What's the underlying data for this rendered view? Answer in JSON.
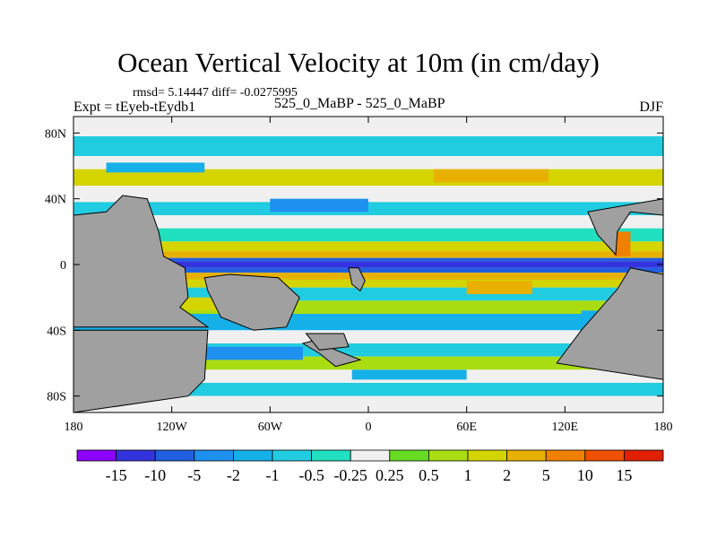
{
  "chart_data": {
    "type": "heatmap",
    "title": "Ocean Vertical Velocity at 10m (in cm/day)",
    "subtitle": "rmsd= 5.14447  diff= -0.0275995",
    "left_label": "Expt = tEyeb-tEydb1",
    "center_label": "525_0_MaBP - 525_0_MaBP",
    "right_label": "DJF",
    "x_range": [
      -180,
      180
    ],
    "y_range": [
      -90,
      90
    ],
    "x_ticks": [
      {
        "value": -180,
        "label": "180"
      },
      {
        "value": -120,
        "label": "120W"
      },
      {
        "value": -60,
        "label": "60W"
      },
      {
        "value": 0,
        "label": "0"
      },
      {
        "value": 60,
        "label": "60E"
      },
      {
        "value": 120,
        "label": "120E"
      },
      {
        "value": 180,
        "label": "180"
      }
    ],
    "y_ticks": [
      {
        "value": 80,
        "label": "80N"
      },
      {
        "value": 40,
        "label": "40N"
      },
      {
        "value": 0,
        "label": "0"
      },
      {
        "value": -40,
        "label": "40S"
      },
      {
        "value": -80,
        "label": "80S"
      }
    ],
    "colorbar": {
      "levels": [
        "-15",
        "-10",
        "-5",
        "-2",
        "-1",
        "-0.5",
        "-0.25",
        "0.25",
        "0.5",
        "1",
        "2",
        "5",
        "10",
        "15"
      ],
      "colors": [
        "#8b00ff",
        "#3333dd",
        "#2060e0",
        "#1e90f0",
        "#16b0e8",
        "#22cce0",
        "#20e0c0",
        "#f0f0f0",
        "#66dd22",
        "#aadd11",
        "#d4d400",
        "#e8b000",
        "#f08000",
        "#ee5000",
        "#e02000"
      ]
    },
    "land_color": "#a0a0a0",
    "bands": [
      {
        "lat_from": 90,
        "lat_to": 78,
        "value": 0.1
      },
      {
        "lat_from": 78,
        "lat_to": 66,
        "value": -0.7
      },
      {
        "lat_from": 66,
        "lat_to": 58,
        "value": 0.1
      },
      {
        "lat_from": 58,
        "lat_to": 48,
        "value": 1.2
      },
      {
        "lat_from": 48,
        "lat_to": 38,
        "value": 0.1
      },
      {
        "lat_from": 38,
        "lat_to": 30,
        "value": -0.6
      },
      {
        "lat_from": 30,
        "lat_to": 22,
        "value": 0.1
      },
      {
        "lat_from": 22,
        "lat_to": 14,
        "value": -0.4
      },
      {
        "lat_from": 14,
        "lat_to": 8,
        "value": 1.5
      },
      {
        "lat_from": 8,
        "lat_to": 4,
        "value": 3
      },
      {
        "lat_from": 4,
        "lat_to": 2,
        "value": -6
      },
      {
        "lat_from": 2,
        "lat_to": -2,
        "value": -12
      },
      {
        "lat_from": -2,
        "lat_to": -5,
        "value": -6
      },
      {
        "lat_from": -5,
        "lat_to": -9,
        "value": 3
      },
      {
        "lat_from": -9,
        "lat_to": -14,
        "value": 1.5
      },
      {
        "lat_from": -14,
        "lat_to": -22,
        "value": -0.7
      },
      {
        "lat_from": -22,
        "lat_to": -30,
        "value": 0.6
      },
      {
        "lat_from": -30,
        "lat_to": -40,
        "value": -1.2
      },
      {
        "lat_from": -40,
        "lat_to": -48,
        "value": 0.1
      },
      {
        "lat_from": -48,
        "lat_to": -56,
        "value": -0.7
      },
      {
        "lat_from": -56,
        "lat_to": -64,
        "value": 0.8
      },
      {
        "lat_from": -64,
        "lat_to": -72,
        "value": 0.1
      },
      {
        "lat_from": -72,
        "lat_to": -80,
        "value": -0.8
      },
      {
        "lat_from": -80,
        "lat_to": -90,
        "value": 0.1
      }
    ],
    "patches": [
      {
        "lon_from": -160,
        "lon_to": -100,
        "lat_from": 56,
        "lat_to": 62,
        "value": -1.5
      },
      {
        "lon_from": 40,
        "lon_to": 110,
        "lat_from": 50,
        "lat_to": 58,
        "value": 2.5
      },
      {
        "lon_from": -60,
        "lon_to": 0,
        "lat_from": 32,
        "lat_to": 40,
        "value": -2.5
      },
      {
        "lon_from": 60,
        "lon_to": 100,
        "lat_from": -18,
        "lat_to": -10,
        "value": 3
      },
      {
        "lon_from": -120,
        "lon_to": -90,
        "lat_from": -28,
        "lat_to": -20,
        "value": 1.5
      },
      {
        "lon_from": -100,
        "lon_to": -40,
        "lat_from": -58,
        "lat_to": -50,
        "value": -3
      },
      {
        "lon_from": 130,
        "lon_to": 170,
        "lat_from": -36,
        "lat_to": -28,
        "value": -2
      },
      {
        "lon_from": -10,
        "lon_to": 60,
        "lat_from": -70,
        "lat_to": -64,
        "value": -1.5
      },
      {
        "lon_from": 150,
        "lon_to": 160,
        "lat_from": 5,
        "lat_to": 20,
        "value": 6
      }
    ],
    "land": [
      {
        "name": "north-america",
        "points": [
          [
            -180,
            30
          ],
          [
            -160,
            32
          ],
          [
            -150,
            42
          ],
          [
            -135,
            40
          ],
          [
            -128,
            20
          ],
          [
            -125,
            5
          ],
          [
            -112,
            -2
          ],
          [
            -110,
            -20
          ],
          [
            -115,
            -26
          ],
          [
            -98,
            -38
          ],
          [
            -180,
            -38
          ]
        ]
      },
      {
        "name": "south-pacific-continent",
        "points": [
          [
            -180,
            -40
          ],
          [
            -98,
            -40
          ],
          [
            -100,
            -70
          ],
          [
            -110,
            -80
          ],
          [
            -180,
            -90
          ]
        ]
      },
      {
        "name": "asia",
        "points": [
          [
            180,
            30
          ],
          [
            160,
            32
          ],
          [
            152,
            20
          ],
          [
            151,
            6
          ],
          [
            140,
            18
          ],
          [
            134,
            32
          ],
          [
            180,
            40
          ]
        ]
      },
      {
        "name": "australia",
        "points": [
          [
            180,
            -6
          ],
          [
            160,
            -2
          ],
          [
            152,
            -15
          ],
          [
            130,
            -40
          ],
          [
            115,
            -60
          ],
          [
            180,
            -70
          ]
        ]
      },
      {
        "name": "south-america",
        "points": [
          [
            -100,
            -8
          ],
          [
            -85,
            -6
          ],
          [
            -55,
            -8
          ],
          [
            -42,
            -20
          ],
          [
            -50,
            -38
          ],
          [
            -70,
            -40
          ],
          [
            -90,
            -32
          ],
          [
            -98,
            -16
          ]
        ]
      },
      {
        "name": "africa-tip",
        "points": [
          [
            -12,
            -2
          ],
          [
            -10,
            -12
          ],
          [
            -5,
            -16
          ],
          [
            -2,
            -10
          ],
          [
            -6,
            -2
          ]
        ]
      },
      {
        "name": "antarctica-piece",
        "points": [
          [
            -40,
            -48
          ],
          [
            -30,
            -54
          ],
          [
            -20,
            -62
          ],
          [
            -5,
            -58
          ],
          [
            -20,
            -52
          ],
          [
            -32,
            -46
          ]
        ]
      },
      {
        "name": "southern-ocean-island",
        "points": [
          [
            -38,
            -42
          ],
          [
            -15,
            -42
          ],
          [
            -12,
            -50
          ],
          [
            -30,
            -52
          ]
        ]
      }
    ]
  }
}
